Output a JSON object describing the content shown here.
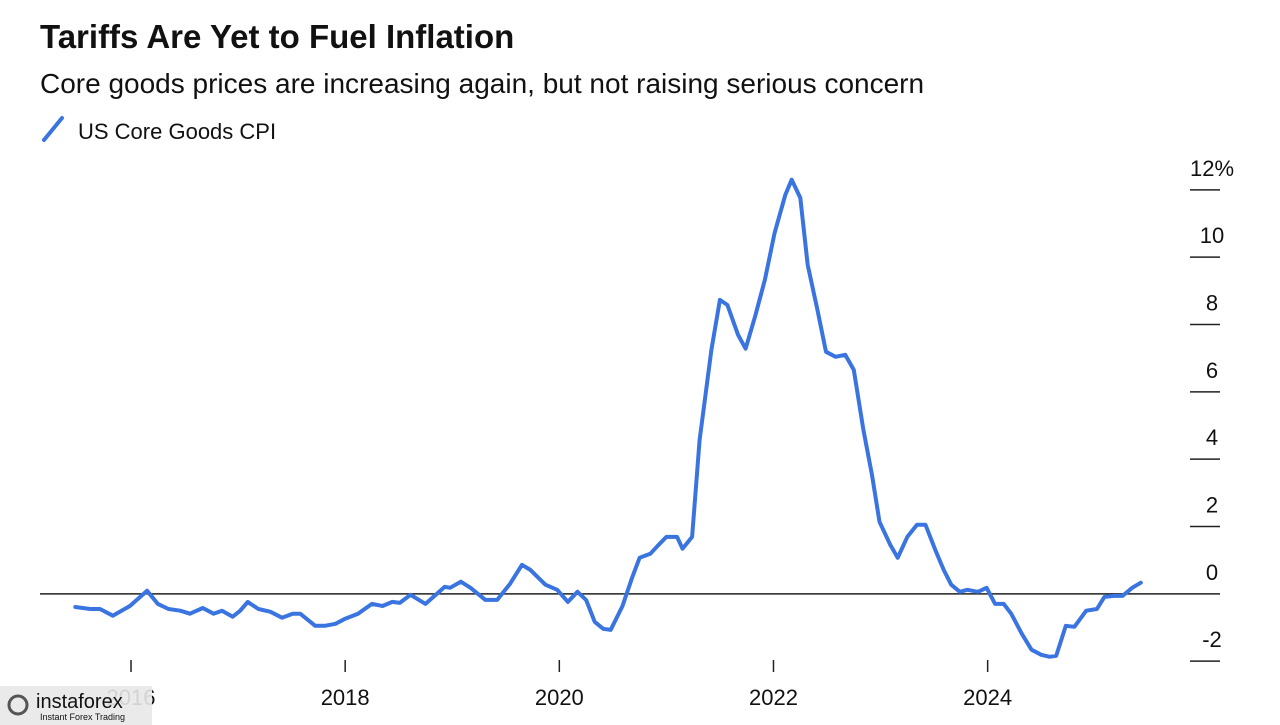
{
  "chart_data": {
    "type": "line",
    "title": "Tariffs Are Yet to Fuel Inflation",
    "subtitle": "Core goods prices are increasing again, but not raising serious concern",
    "x": [
      2015.48,
      2015.62,
      2015.71,
      2015.83,
      2015.99,
      2016.15,
      2016.25,
      2016.35,
      2016.46,
      2016.55,
      2016.67,
      2016.77,
      2016.85,
      2016.95,
      2017.02,
      2017.09,
      2017.19,
      2017.3,
      2017.41,
      2017.51,
      2017.58,
      2017.72,
      2017.81,
      2017.91,
      2018.0,
      2018.12,
      2018.25,
      2018.35,
      2018.44,
      2018.51,
      2018.61,
      2018.75,
      2018.93,
      2018.98,
      2019.08,
      2019.17,
      2019.31,
      2019.42,
      2019.54,
      2019.65,
      2019.73,
      2019.87,
      2019.98,
      2020.08,
      2020.17,
      2020.25,
      2020.33,
      2020.41,
      2020.48,
      2020.59,
      2020.68,
      2020.75,
      2020.85,
      2020.92,
      2021.0,
      2021.1,
      2021.15,
      2021.24,
      2021.31,
      2021.42,
      2021.5,
      2021.57,
      2021.67,
      2021.74,
      2021.83,
      2021.92,
      2022.01,
      2022.11,
      2022.17,
      2022.25,
      2022.32,
      2022.41,
      2022.49,
      2022.58,
      2022.67,
      2022.75,
      2022.84,
      2022.92,
      2022.99,
      2023.09,
      2023.16,
      2023.25,
      2023.34,
      2023.42,
      2023.51,
      2023.59,
      2023.66,
      2023.74,
      2023.81,
      2023.91,
      2023.99,
      2024.07,
      2024.15,
      2024.22,
      2024.32,
      2024.41,
      2024.5,
      2024.58,
      2024.64,
      2024.73,
      2024.81,
      2024.92,
      2025.02,
      2025.09,
      2025.18,
      2025.26,
      2025.35,
      2025.43
    ],
    "series": [
      {
        "name": "US Core Goods CPI",
        "color": "#3a74e0",
        "values": [
          -0.39,
          -0.45,
          -0.45,
          -0.65,
          -0.36,
          0.09,
          -0.3,
          -0.45,
          -0.5,
          -0.59,
          -0.42,
          -0.59,
          -0.5,
          -0.68,
          -0.5,
          -0.24,
          -0.45,
          -0.53,
          -0.71,
          -0.59,
          -0.59,
          -0.95,
          -0.95,
          -0.89,
          -0.74,
          -0.59,
          -0.3,
          -0.36,
          -0.24,
          -0.27,
          -0.03,
          -0.3,
          0.21,
          0.18,
          0.36,
          0.18,
          -0.18,
          -0.18,
          0.3,
          0.86,
          0.71,
          0.27,
          0.12,
          -0.24,
          0.06,
          -0.18,
          -0.83,
          -1.04,
          -1.07,
          -0.36,
          0.48,
          1.07,
          1.19,
          1.43,
          1.69,
          1.69,
          1.34,
          1.69,
          4.57,
          7.25,
          8.73,
          8.58,
          7.69,
          7.28,
          8.26,
          9.33,
          10.72,
          11.85,
          12.3,
          11.76,
          9.77,
          8.44,
          7.19,
          7.04,
          7.1,
          6.65,
          4.87,
          3.53,
          2.14,
          1.46,
          1.07,
          1.69,
          2.05,
          2.05,
          1.31,
          0.71,
          0.27,
          0.06,
          0.12,
          0.06,
          0.18,
          -0.3,
          -0.3,
          -0.59,
          -1.19,
          -1.66,
          -1.81,
          -1.87,
          -1.84,
          -0.95,
          -0.98,
          -0.5,
          -0.45,
          -0.09,
          -0.06,
          -0.06,
          0.18,
          0.33
        ]
      }
    ],
    "xlim": [
      2015.15,
      2026.17
    ],
    "xticks": [
      2016,
      2018,
      2020,
      2022,
      2024
    ],
    "ylim": [
      -2.5,
      12.5
    ],
    "yticks": [
      -2,
      0,
      2,
      4,
      6,
      8,
      10,
      {
        "value": 12,
        "label": "12%"
      }
    ]
  },
  "watermark": {
    "name": "instaforex",
    "tagline": "Instant Forex Trading"
  }
}
